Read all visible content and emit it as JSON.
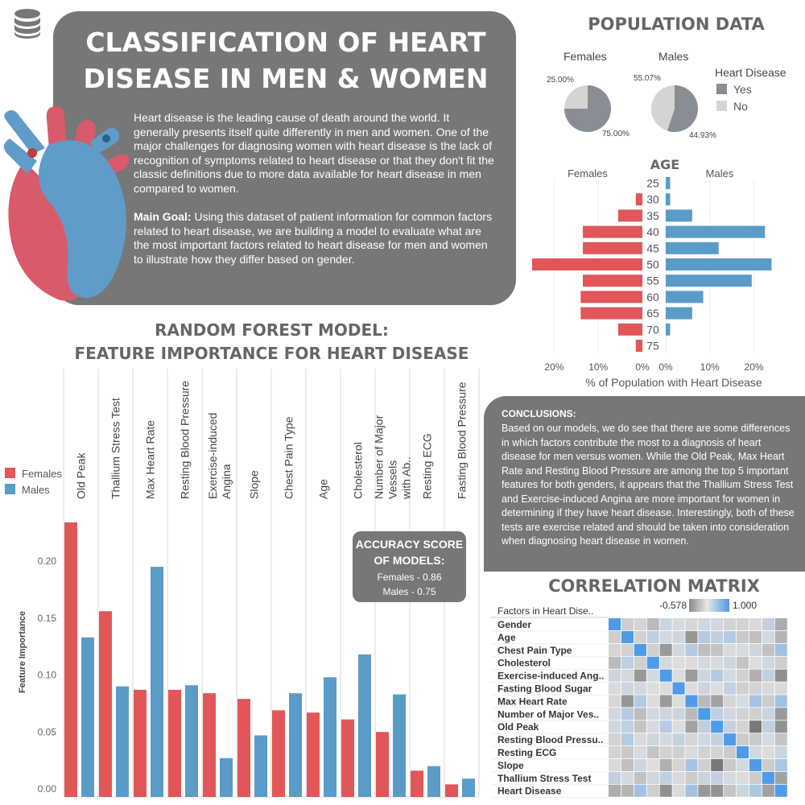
{
  "header": {
    "title": "CLASSIFICATION OF HEART DISEASE IN MEN & WOMEN",
    "intro": "Heart disease is the leading cause of death around the world. It generally presents itself quite differently in men and women. One of the major challenges for diagnosing women with heart disease is the lack of recognition of symptoms related to heart disease or that they don't fit the classic definitions due to more data available for heart disease in men compared to women.",
    "main_goal_label": "Main Goal:",
    "main_goal_text": " Using this dataset of patient information for common factors related to heart disease, we are building a model to evaluate what are the most important factors related to heart disease for men and women to illustrate how they differ based on gender."
  },
  "icons": {
    "database": "database-icon",
    "heart": "heart-illustration"
  },
  "colors": {
    "females": "#e15759",
    "males": "#5b9bc8",
    "yes": "#888e93",
    "no": "#d4d4d4",
    "panel": "#777777"
  },
  "conclusions": {
    "label": "CONCLUSIONS:",
    "text": "Based on our models, we do see that there are some differences in which factors contribute the most to a diagnosis of heart disease for men versus women. While the Old Peak, Max Heart Rate and Resting Blood Pressure are among the top 5 important features for both genders, it appears that the Thallium Stress Test and Exercise-induced Angina are more important for women in determining if they have heart disease. Interestingly, both of these tests are exercise related and should be taken into consideration when diagnosing heart disease in women."
  },
  "accuracy": {
    "title": "ACCURACY SCORE OF MODELS:",
    "females": "Females - 0.86",
    "males": "Males - 0.75"
  },
  "chart_data": [
    {
      "type": "pie",
      "section_title": "POPULATION DATA",
      "legend_title": "Heart Disease",
      "legend": [
        "Yes",
        "No"
      ],
      "pies": [
        {
          "name": "Females",
          "slices": [
            {
              "label": "Yes",
              "value": 75.0,
              "text": "75.00%"
            },
            {
              "label": "No",
              "value": 25.0,
              "text": "25.00%"
            }
          ]
        },
        {
          "name": "Males",
          "slices": [
            {
              "label": "Yes",
              "value": 55.07,
              "text": "55.07%"
            },
            {
              "label": "No",
              "value": 44.93,
              "text": "44.93%"
            }
          ]
        }
      ]
    },
    {
      "type": "bar",
      "orientation": "horizontal-butterfly",
      "title": "AGE",
      "categories": [
        "25",
        "30",
        "35",
        "40",
        "45",
        "50",
        "55",
        "60",
        "65",
        "70",
        "75"
      ],
      "series": [
        {
          "name": "Females",
          "values": [
            0,
            1.5,
            5.5,
            13.5,
            13.5,
            25,
            13.5,
            14,
            14,
            5.5,
            1.5
          ]
        },
        {
          "name": "Males",
          "values": [
            1,
            1,
            6,
            22.5,
            12,
            24,
            19.5,
            8.5,
            6,
            1,
            0
          ]
        }
      ],
      "xlabel": "% of Population with Heart Disease",
      "left_ticks": [
        "20%",
        "10%",
        "0%"
      ],
      "right_ticks": [
        "0%",
        "10%",
        "20%"
      ],
      "xlim": [
        0,
        25
      ]
    },
    {
      "type": "bar",
      "title_line1": "RANDOM FOREST MODEL:",
      "title_line2": "FEATURE IMPORTANCE FOR HEART DISEASE",
      "categories": [
        "Old Peak",
        "Thallium Stress Test",
        "Max Heart Rate",
        "Resting Blood Pressure",
        "Exercise-induced Angina",
        "Slope",
        "Chest Pain Type",
        "Age",
        "Cholesterol",
        "Number of Major Vessels with Ab..",
        "Resting ECG",
        "Fasting Blood Pressure"
      ],
      "category_lines": [
        [
          "Old Peak"
        ],
        [
          "Thallium Stress Test"
        ],
        [
          "Max Heart Rate"
        ],
        [
          "Resting Blood Pressure"
        ],
        [
          "Exercise-induced",
          "Angina"
        ],
        [
          "Slope"
        ],
        [
          "Chest Pain Type"
        ],
        [
          "Age"
        ],
        [
          "Cholesterol"
        ],
        [
          "Number of Major",
          "Vessels",
          "with Ab.."
        ],
        [
          "Resting ECG"
        ],
        [
          "Fasting Blood Pressure"
        ]
      ],
      "series": [
        {
          "name": "Females",
          "values": [
            0.234,
            0.156,
            0.087,
            0.087,
            0.084,
            0.079,
            0.069,
            0.067,
            0.061,
            0.05,
            0.016,
            0.004
          ]
        },
        {
          "name": "Males",
          "values": [
            0.133,
            0.09,
            0.195,
            0.091,
            0.027,
            0.047,
            0.084,
            0.098,
            0.118,
            0.083,
            0.02,
            0.009
          ]
        }
      ],
      "ylabel": "Feature Importance",
      "yticks": [
        "0.00",
        "0.05",
        "0.10",
        "0.15",
        "0.20"
      ],
      "ylim": [
        0,
        0.25
      ]
    },
    {
      "type": "heatmap",
      "title": "CORRELATION MATRIX",
      "row_header": "Factors in Heart Dise..",
      "color_min_label": "-0.578",
      "color_max_label": "1.000",
      "color_range": [
        -0.578,
        1.0
      ],
      "rows": [
        "Gender",
        "Age",
        "Chest Pain Type",
        "Cholesterol",
        "Exercise-induced Ang..",
        "Fasting Blood Sugar",
        "Max Heart Rate",
        "Number of Major Ves..",
        "Old Peak",
        "Resting Blood Pressu..",
        "Resting ECG",
        "Slope",
        "Thallium Stress Test",
        "Heart Disease"
      ],
      "values": [
        [
          1.0,
          -0.09,
          -0.05,
          -0.2,
          0.14,
          0.05,
          -0.04,
          0.1,
          0.1,
          -0.06,
          -0.06,
          -0.03,
          0.21,
          -0.28
        ],
        [
          -0.09,
          1.0,
          -0.07,
          0.21,
          0.09,
          0.12,
          -0.4,
          0.28,
          0.21,
          0.28,
          -0.12,
          -0.17,
          0.07,
          -0.23
        ],
        [
          -0.05,
          -0.07,
          1.0,
          -0.08,
          -0.39,
          0.09,
          0.3,
          -0.18,
          -0.15,
          0.05,
          0.04,
          0.12,
          -0.16,
          0.43
        ],
        [
          -0.2,
          0.21,
          -0.08,
          1.0,
          0.07,
          0.01,
          -0.01,
          0.07,
          0.05,
          0.12,
          -0.15,
          0.0,
          0.1,
          -0.09
        ],
        [
          0.14,
          0.09,
          -0.39,
          0.07,
          1.0,
          0.03,
          -0.38,
          0.12,
          0.29,
          0.07,
          -0.07,
          -0.26,
          0.21,
          -0.44
        ],
        [
          0.05,
          0.12,
          0.09,
          0.01,
          0.03,
          1.0,
          -0.01,
          0.14,
          0.01,
          0.18,
          -0.08,
          -0.06,
          -0.03,
          -0.03
        ],
        [
          -0.04,
          -0.4,
          0.3,
          -0.01,
          -0.38,
          -0.01,
          1.0,
          -0.21,
          -0.34,
          -0.05,
          0.04,
          0.39,
          -0.1,
          0.42
        ],
        [
          0.1,
          0.28,
          -0.18,
          0.07,
          0.12,
          0.14,
          -0.21,
          1.0,
          0.22,
          0.1,
          -0.07,
          -0.08,
          0.15,
          -0.39
        ],
        [
          0.1,
          0.21,
          -0.15,
          0.05,
          0.29,
          0.01,
          -0.34,
          0.22,
          1.0,
          0.19,
          -0.06,
          -0.58,
          0.21,
          -0.43
        ],
        [
          -0.06,
          0.28,
          0.05,
          0.12,
          0.07,
          0.18,
          -0.05,
          0.1,
          0.19,
          1.0,
          -0.11,
          -0.12,
          0.06,
          -0.14
        ],
        [
          -0.06,
          -0.12,
          0.04,
          -0.15,
          -0.07,
          -0.08,
          0.04,
          -0.07,
          -0.06,
          -0.11,
          1.0,
          0.09,
          -0.01,
          0.14
        ],
        [
          -0.03,
          -0.17,
          0.12,
          0.0,
          -0.26,
          -0.06,
          0.39,
          -0.08,
          -0.58,
          -0.12,
          0.09,
          1.0,
          -0.1,
          0.35
        ],
        [
          0.21,
          0.07,
          -0.16,
          0.1,
          0.21,
          -0.03,
          -0.1,
          0.15,
          0.21,
          0.06,
          -0.01,
          -0.1,
          1.0,
          -0.34
        ],
        [
          -0.28,
          -0.23,
          0.43,
          -0.09,
          -0.44,
          -0.03,
          0.42,
          -0.39,
          -0.43,
          -0.14,
          0.14,
          0.35,
          -0.34,
          1.0
        ]
      ]
    }
  ]
}
